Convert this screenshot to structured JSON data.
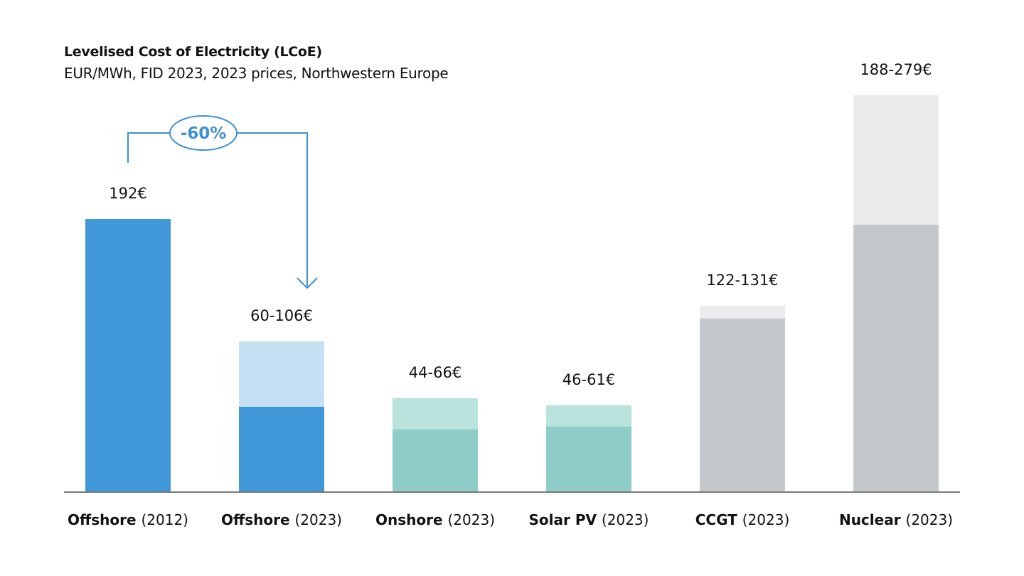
{
  "chart_data": {
    "type": "bar",
    "title": "Levelised Cost of Electricity (LCoE)",
    "subtitle": "EUR/MWh, FID 2023, 2023 prices, Northwestern Europe",
    "xlabel": "",
    "ylabel": "EUR/MWh",
    "ylim": [
      0,
      300
    ],
    "grid": false,
    "categories": [
      {
        "name": "Offshore",
        "year": "(2012)"
      },
      {
        "name": "Offshore",
        "year": "(2023)"
      },
      {
        "name": "Onshore",
        "year": "(2023)"
      },
      {
        "name": "Solar PV",
        "year": "(2023)"
      },
      {
        "name": "CCGT",
        "year": "(2023)"
      },
      {
        "name": "Nuclear",
        "year": "(2023)"
      }
    ],
    "series": [
      {
        "name": "low",
        "values": [
          192,
          60,
          44,
          46,
          122,
          188
        ]
      },
      {
        "name": "high",
        "values": [
          192,
          106,
          66,
          61,
          131,
          279
        ]
      }
    ],
    "value_labels": [
      "192€",
      "60-106€",
      "44-66€",
      "46-61€",
      "122-131€",
      "188-279€"
    ],
    "colors": {
      "low": [
        "#4198d9",
        "#4198d9",
        "#8ecdc8",
        "#8ecdc8",
        "#c4c8cb",
        "#c4c8cb"
      ],
      "high": [
        "#4198d9",
        "#c6e1f4",
        "#bae3de",
        "#bae3de",
        "#e9ebed",
        "#e9ebed"
      ],
      "annotation": "#3f8fd2",
      "axis": "#7a7a7a"
    },
    "annotations": [
      {
        "text": "-60%",
        "from_category": 0,
        "to_category": 1
      }
    ]
  }
}
